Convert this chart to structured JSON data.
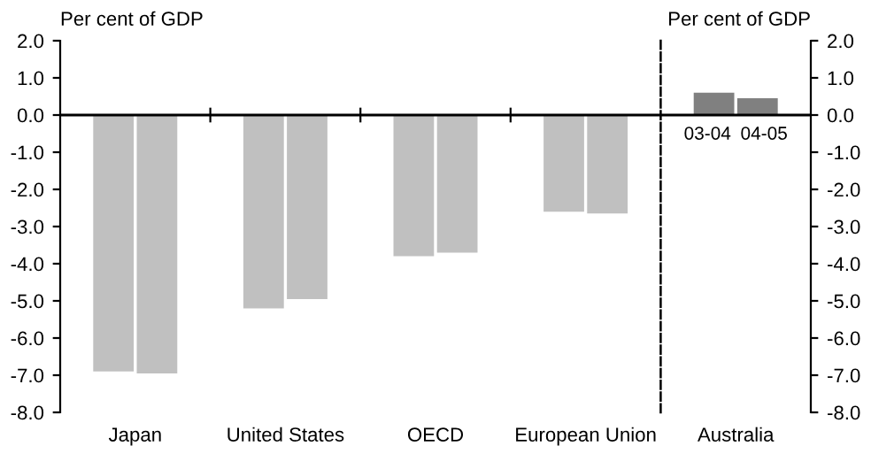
{
  "chart_data": [
    {
      "type": "bar",
      "ylabel": "Per cent of GDP",
      "categories": [
        "Japan",
        "United States",
        "OECD",
        "European Union"
      ],
      "series": [
        {
          "color": "#c0c0c0",
          "values": [
            -6.9,
            -5.2,
            -3.8,
            -2.6
          ]
        },
        {
          "color": "#c0c0c0",
          "values": [
            -6.95,
            -4.95,
            -3.7,
            -2.65
          ]
        }
      ],
      "ylim": [
        -8,
        2
      ],
      "yticks": [
        {
          "value": -8,
          "label": "-8.0"
        },
        {
          "value": -7,
          "label": "-7.0"
        },
        {
          "value": -6,
          "label": "-6.0"
        },
        {
          "value": -5,
          "label": "-5.0"
        },
        {
          "value": -4,
          "label": "-4.0"
        },
        {
          "value": -3,
          "label": "-3.0"
        },
        {
          "value": -2,
          "label": "-2.0"
        },
        {
          "value": -1,
          "label": "-1.0"
        },
        {
          "value": 0,
          "label": "0.0"
        },
        {
          "value": 1,
          "label": "1.0"
        },
        {
          "value": 2,
          "label": "2.0"
        }
      ]
    },
    {
      "type": "bar",
      "y2label": "Per cent of GDP",
      "categories": [
        "Australia"
      ],
      "series": [
        {
          "name": "03-04",
          "color": "#808080",
          "axis": "y2",
          "values": [
            0.6
          ]
        },
        {
          "name": "04-05",
          "color": "#808080",
          "axis": "y2",
          "values": [
            0.45
          ]
        }
      ],
      "y2lim": [
        -8,
        2
      ],
      "y2ticks": [
        {
          "value": -8,
          "label": "-8.0"
        },
        {
          "value": -7,
          "label": "-7.0"
        },
        {
          "value": -6,
          "label": "-6.0"
        },
        {
          "value": -5,
          "label": "-5.0"
        },
        {
          "value": -4,
          "label": "-4.0"
        },
        {
          "value": -3,
          "label": "-3.0"
        },
        {
          "value": -2,
          "label": "-2.0"
        },
        {
          "value": -1,
          "label": "-1.0"
        },
        {
          "value": 0,
          "label": "0.0"
        },
        {
          "value": 1,
          "label": "1.0"
        },
        {
          "value": 2,
          "label": "2.0"
        }
      ]
    }
  ]
}
